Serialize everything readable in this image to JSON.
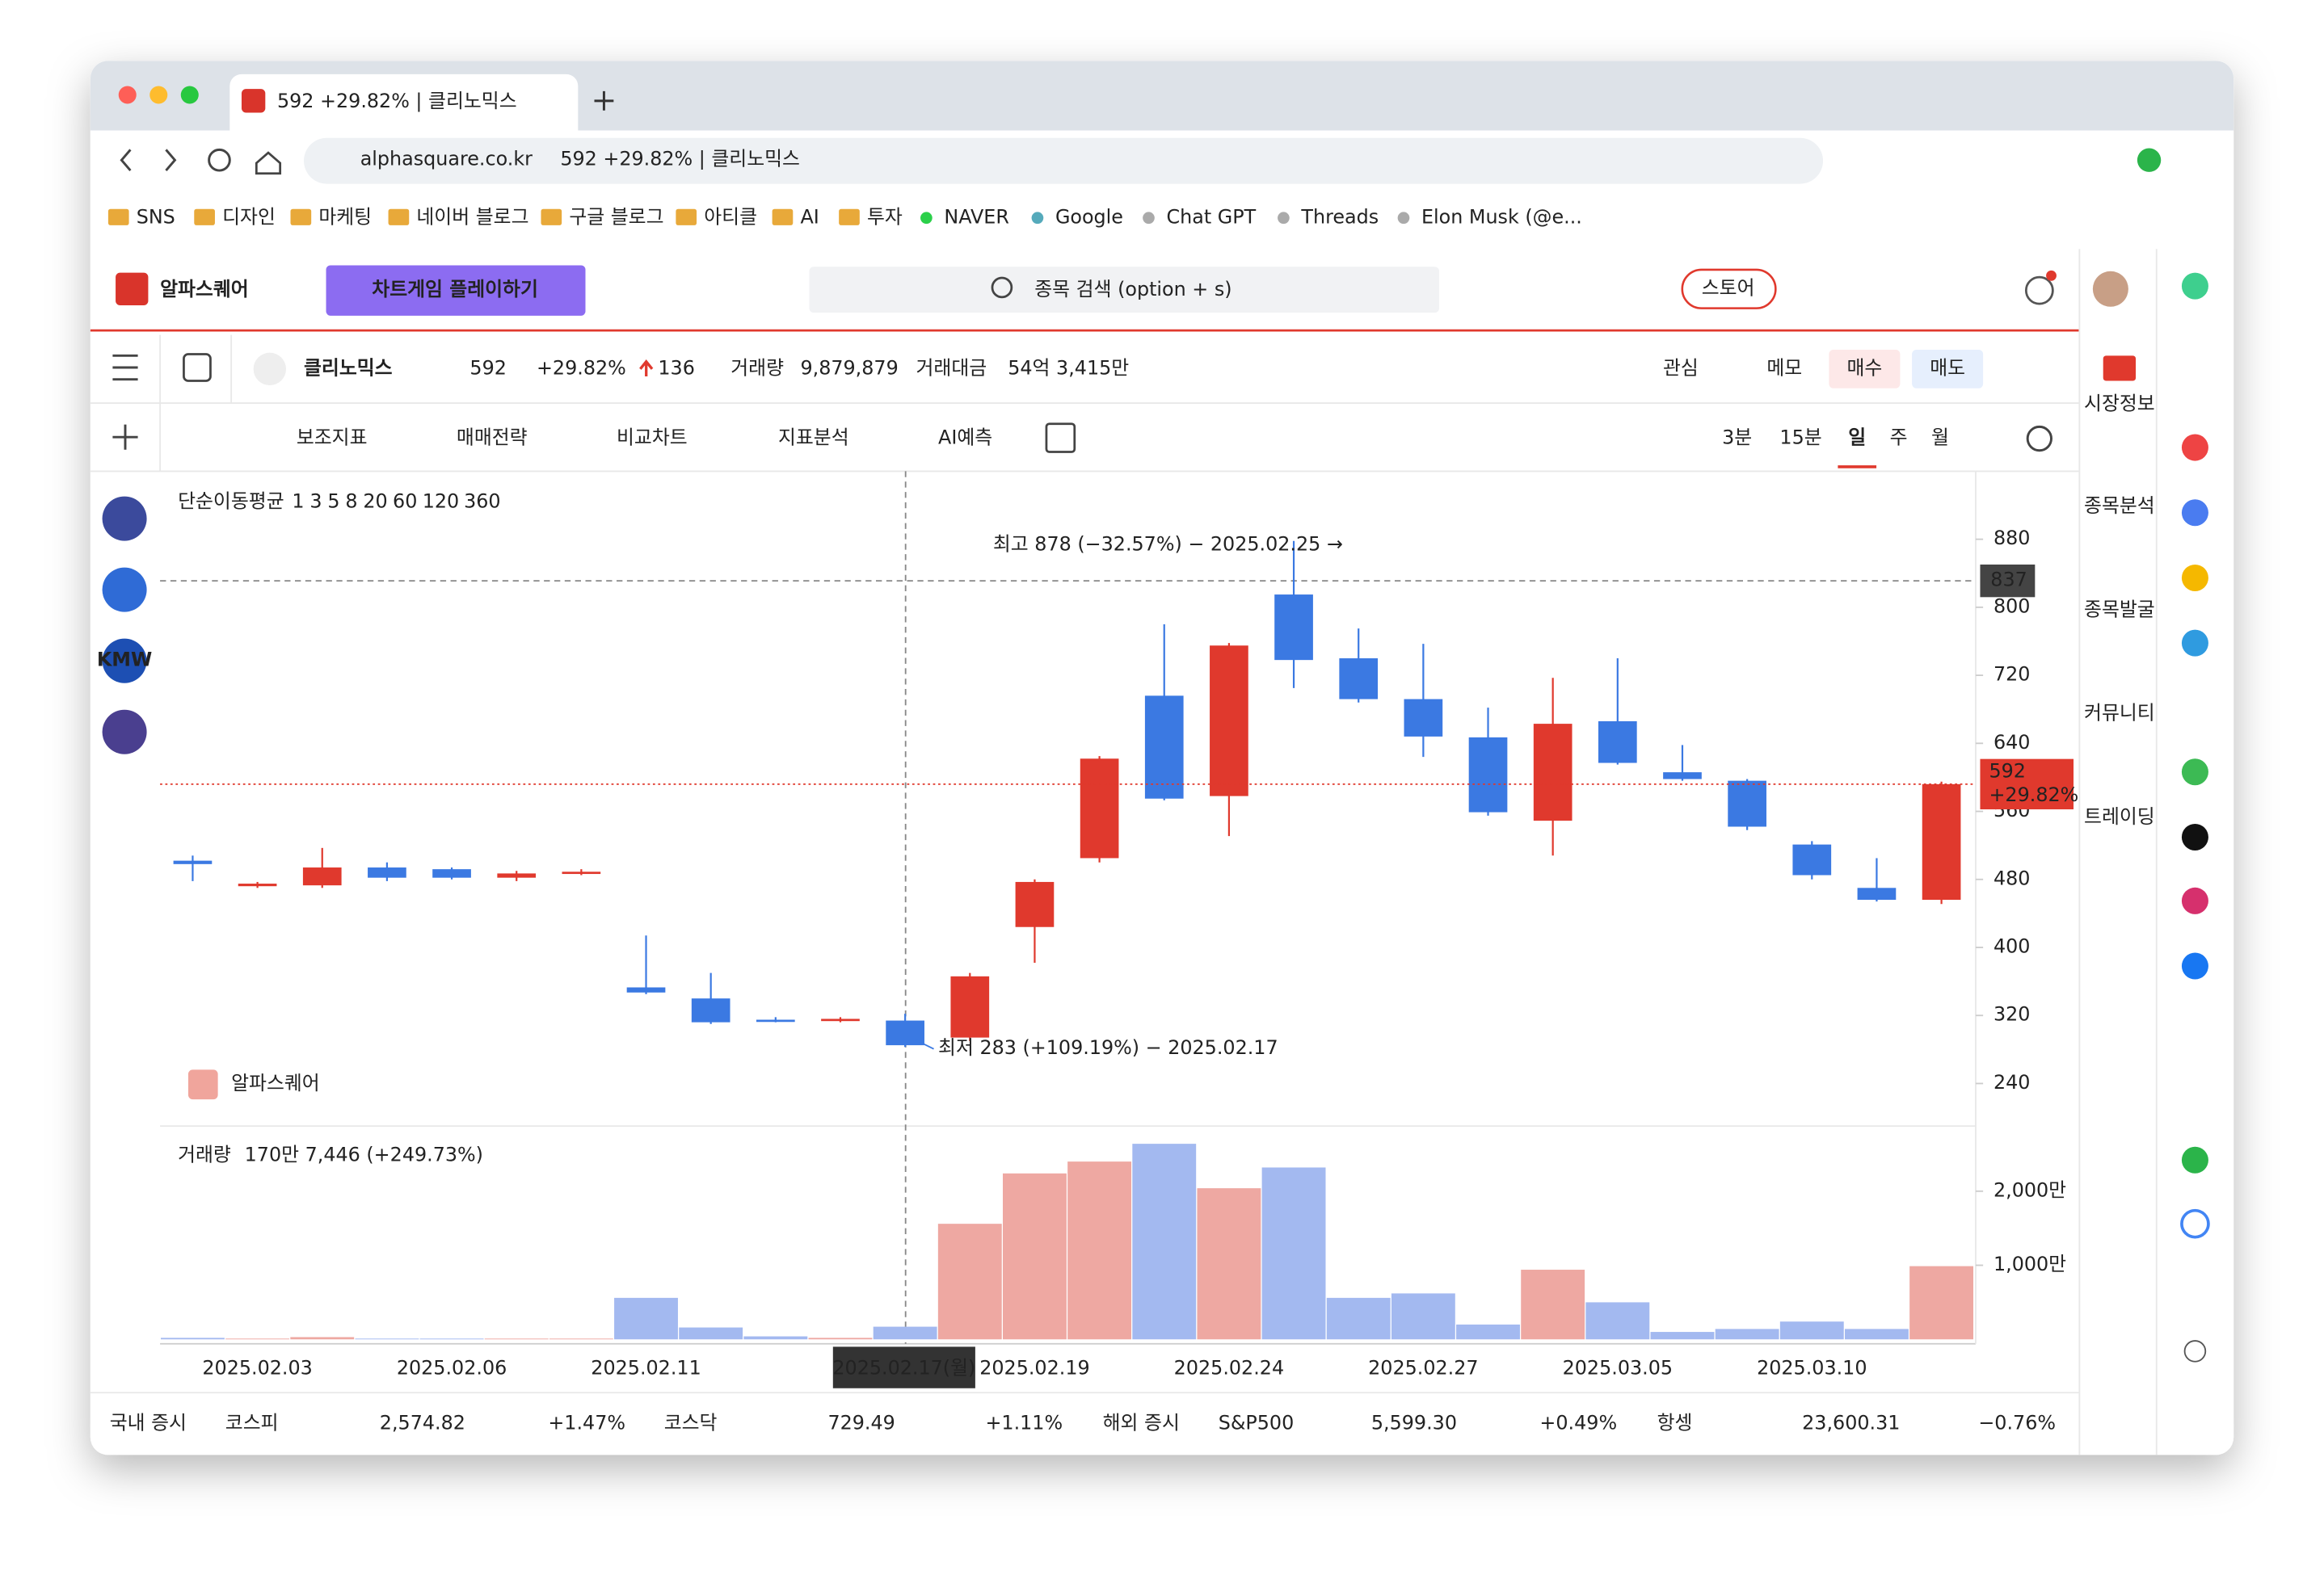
{
  "browser": {
    "tab_title": "592 +29.82% | 클리노믹스",
    "url": "alphasquare.co.kr",
    "url_title": "592 +29.82% | 클리노믹스",
    "bookmarks": [
      "SNS",
      "디자인",
      "마케팅",
      "네이버 블로그",
      "구글 블로그",
      "아티클",
      "AI",
      "투자",
      "NAVER",
      "Google",
      "Chat GPT",
      "Threads",
      "Elon Musk (@e..."
    ]
  },
  "app": {
    "logo": "알파스퀘어",
    "banner": "차트게임 플레이하기",
    "search": "종목 검색 (option + s)",
    "store": "스토어",
    "sidebar": [
      "시장정보",
      "종목분석",
      "종목발굴",
      "커뮤니티",
      "트레이딩"
    ],
    "stock": {
      "name": "클리노믹스",
      "price": "592",
      "change": "+29.82%",
      "diff": "136",
      "volume_label": "거래량",
      "volume": "9,879,879",
      "amount_label": "거래대금",
      "amount": "54억 3,415만"
    },
    "buttons": [
      "관심",
      "메모",
      "매수",
      "매도"
    ],
    "tools": [
      "보조지표",
      "매매전략",
      "비교차트",
      "지표분석",
      "AI예측"
    ],
    "periods": [
      "3분",
      "15분",
      "일",
      "주",
      "월"
    ],
    "left_icon_text": "KMW",
    "ma_legend": {
      "label": "단순이동평균",
      "periods": [
        "1",
        "3",
        "5",
        "8",
        "20",
        "60",
        "120",
        "360"
      ]
    },
    "high_note": "최고 878 (−32.57%) − 2025.02.25 →",
    "low_note": "최저 283 (+109.19%) − 2025.02.17",
    "crosshair_price": "837",
    "crosshair_date": "2025.02.17(월)",
    "last_price": "592",
    "last_change": "+29.82%",
    "watermark": "알파스퀘어",
    "volume_label": "거래량",
    "volume_note": "170만 7,446 (+249.73%)",
    "ticker": [
      "국내 증시",
      "코스피",
      "2,574.82",
      "+1.47%",
      "코스닥",
      "729.49",
      "+1.11%",
      "해외 증시",
      "S&P500",
      "5,599.30",
      "+0.49%",
      "항셍",
      "23,600.31",
      "−0.76%"
    ]
  },
  "chart_data": [
    {
      "type": "candlestick",
      "categories": [
        null,
        "2025.02.03",
        null,
        null,
        "2025.02.06",
        null,
        null,
        "2025.02.11",
        null,
        null,
        null,
        null,
        null,
        "2025.02.19",
        null,
        null,
        "2025.02.24",
        null,
        null,
        "2025.02.27",
        null,
        null,
        "2025.03.05",
        null,
        null,
        "2025.03.10",
        null,
        null
      ],
      "open": [
        502,
        472,
        473,
        494,
        492,
        482,
        487,
        353,
        340,
        315,
        315,
        314,
        294,
        424,
        505,
        696,
        578,
        815,
        740,
        692,
        647,
        549,
        666,
        606,
        596,
        521,
        470,
        456
      ],
      "high": [
        508,
        477,
        517,
        500,
        494,
        490,
        492,
        414,
        370,
        318,
        318,
        322,
        370,
        480,
        625,
        780,
        758,
        878,
        775,
        757,
        682,
        717,
        740,
        638,
        598,
        525,
        505,
        595
      ],
      "low": [
        478,
        470,
        470,
        478,
        480,
        478,
        485,
        345,
        310,
        312,
        312,
        283,
        290,
        382,
        500,
        573,
        531,
        705,
        688,
        624,
        555,
        508,
        615,
        596,
        538,
        480,
        454,
        451
      ],
      "close": [
        498,
        475,
        494,
        482,
        482,
        487,
        489,
        347,
        312,
        314,
        316,
        285,
        366,
        477,
        622,
        575,
        755,
        738,
        692,
        648,
        559,
        663,
        617,
        598,
        542,
        485,
        456,
        592
      ],
      "up_color": "#e0392d",
      "down_color": "#3b79e2",
      "ylim": [
        190,
        960
      ],
      "yticks": [
        880,
        800,
        720,
        640,
        560,
        480,
        400,
        320,
        240
      ]
    },
    {
      "type": "bar",
      "values": [
        20,
        10,
        30,
        10,
        10,
        10,
        10,
        560,
        160,
        40,
        20,
        170.7446,
        1560,
        2240,
        2400,
        2640,
        2040,
        2320,
        560,
        620,
        200,
        940,
        500,
        100,
        140,
        240,
        140,
        987.9879
      ],
      "up_color": "#eea8a2",
      "down_color": "#a3b9f0",
      "ylim": [
        0,
        2780
      ],
      "yticks": [
        {
          "value": 1000,
          "label": "1,000만"
        },
        {
          "value": 2000,
          "label": "2,000만"
        }
      ]
    }
  ]
}
